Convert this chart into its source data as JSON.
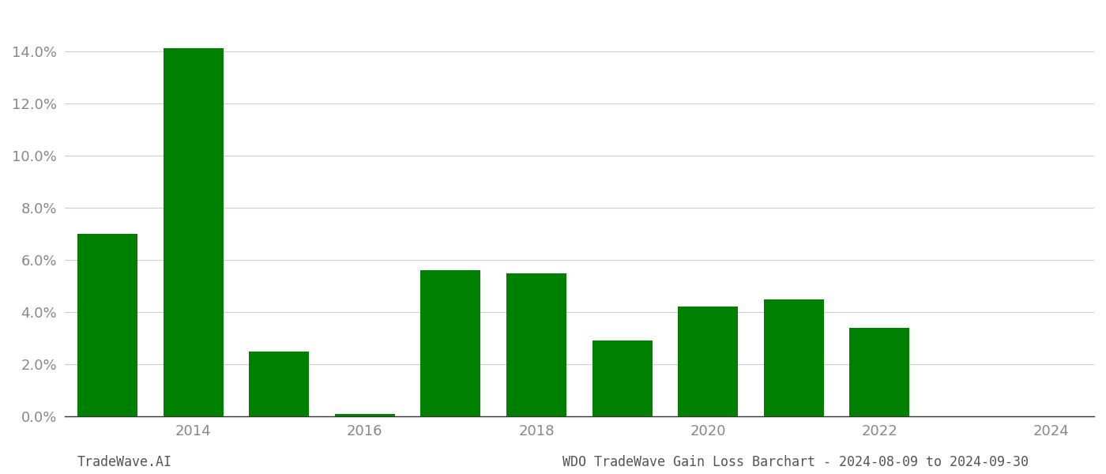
{
  "years": [
    2013,
    2014,
    2015,
    2016,
    2017,
    2018,
    2019,
    2020,
    2021,
    2022,
    2023
  ],
  "values": [
    0.07,
    0.141,
    0.025,
    0.001,
    0.056,
    0.055,
    0.029,
    0.042,
    0.045,
    0.034,
    0.0001
  ],
  "bar_color": "#008000",
  "background_color": "#ffffff",
  "grid_color": "#cccccc",
  "tick_color": "#888888",
  "ylim": [
    0,
    0.155
  ],
  "yticks": [
    0.0,
    0.02,
    0.04,
    0.06,
    0.08,
    0.1,
    0.12,
    0.14
  ],
  "xtick_positions": [
    2014,
    2016,
    2018,
    2020,
    2022,
    2024
  ],
  "xlim": [
    2012.5,
    2024.5
  ],
  "tick_fontsize": 13,
  "footer_left": "TradeWave.AI",
  "footer_right": "WDO TradeWave Gain Loss Barchart - 2024-08-09 to 2024-09-30",
  "footer_fontsize": 12,
  "bar_width": 0.7
}
